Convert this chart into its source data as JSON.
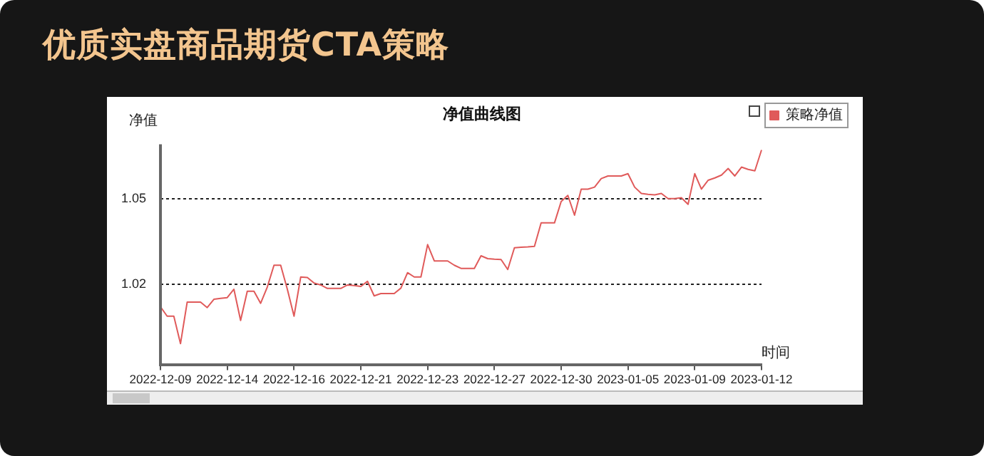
{
  "chart_data": {
    "type": "line",
    "title": "净值曲线图",
    "subtitle": "优质实盘商品期货CTA策略",
    "ylabel": "净值",
    "xlabel": "时间",
    "categories": [
      "2022-12-09",
      null,
      null,
      null,
      null,
      null,
      null,
      null,
      null,
      null,
      "2022-12-14",
      null,
      null,
      null,
      null,
      null,
      null,
      null,
      null,
      null,
      "2022-12-16",
      null,
      null,
      null,
      null,
      null,
      null,
      null,
      null,
      null,
      "2022-12-21",
      null,
      null,
      null,
      null,
      null,
      null,
      null,
      null,
      null,
      "2022-12-23",
      null,
      null,
      null,
      null,
      null,
      null,
      null,
      null,
      null,
      "2022-12-27",
      null,
      null,
      null,
      null,
      null,
      null,
      null,
      null,
      null,
      "2022-12-30",
      null,
      null,
      null,
      null,
      null,
      null,
      null,
      null,
      null,
      "2023-01-05",
      null,
      null,
      null,
      null,
      null,
      null,
      null,
      null,
      null,
      "2023-01-09",
      null,
      null,
      null,
      null,
      null,
      null,
      null,
      null,
      null,
      "2023-01-12"
    ],
    "series": [
      {
        "name": "策略净值",
        "color": "#e05a5a",
        "values": [
          1.0122,
          1.0089,
          1.0089,
          0.9993,
          1.0138,
          1.0138,
          1.0138,
          1.0119,
          1.0148,
          1.0151,
          1.0154,
          1.0183,
          1.0074,
          1.0176,
          1.0176,
          1.0134,
          1.0191,
          1.0267,
          1.0267,
          1.0183,
          1.0089,
          1.0226,
          1.0224,
          1.0205,
          1.0198,
          1.0186,
          1.0186,
          1.0186,
          1.0198,
          1.0196,
          1.0193,
          1.0211,
          1.016,
          1.0168,
          1.0168,
          1.0168,
          1.0187,
          1.0241,
          1.0226,
          1.0226,
          1.0339,
          1.0282,
          1.0282,
          1.0282,
          1.0267,
          1.0256,
          1.0256,
          1.0256,
          1.03,
          1.029,
          1.0288,
          1.0287,
          1.0252,
          1.0328,
          1.033,
          1.0331,
          1.0333,
          1.0415,
          1.0415,
          1.0415,
          1.049,
          1.0511,
          1.0442,
          1.0533,
          1.0533,
          1.054,
          1.057,
          1.0579,
          1.0579,
          1.0579,
          1.0587,
          1.054,
          1.0518,
          1.0515,
          1.0513,
          1.0518,
          1.05,
          1.05,
          1.0503,
          1.048,
          1.0587,
          1.0533,
          1.0564,
          1.0572,
          1.0582,
          1.0605,
          1.0579,
          1.061,
          1.0602,
          1.0597,
          1.067
        ]
      }
    ],
    "ylim": [
      0.992,
      1.069
    ],
    "yticks": [
      1.02,
      1.05
    ],
    "grid": "y",
    "legend": "top right",
    "marker": "none",
    "line_style": "solid"
  }
}
